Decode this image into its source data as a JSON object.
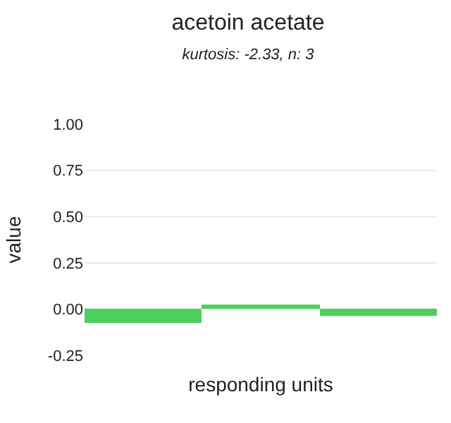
{
  "chart_data": {
    "type": "bar",
    "title": "acetoin acetate",
    "subtitle": "kurtosis: -2.33, n: 3",
    "xlabel": "responding units",
    "ylabel": "value",
    "categories": [
      null,
      null,
      null
    ],
    "series": [
      {
        "color": "#4bd05b",
        "values": [
          -0.076,
          0.027,
          -0.038
        ]
      }
    ],
    "ylim": [
      -0.25,
      1
    ],
    "yticks": [
      {
        "value": -0.25,
        "label": "-0.25"
      },
      {
        "value": 0,
        "label": "0.00"
      },
      {
        "value": 0.25,
        "label": "0.25"
      },
      {
        "value": 0.5,
        "label": "0.50"
      },
      {
        "value": 0.75,
        "label": "0.75"
      },
      {
        "value": 1,
        "label": "1.00"
      }
    ],
    "grid": "y"
  }
}
